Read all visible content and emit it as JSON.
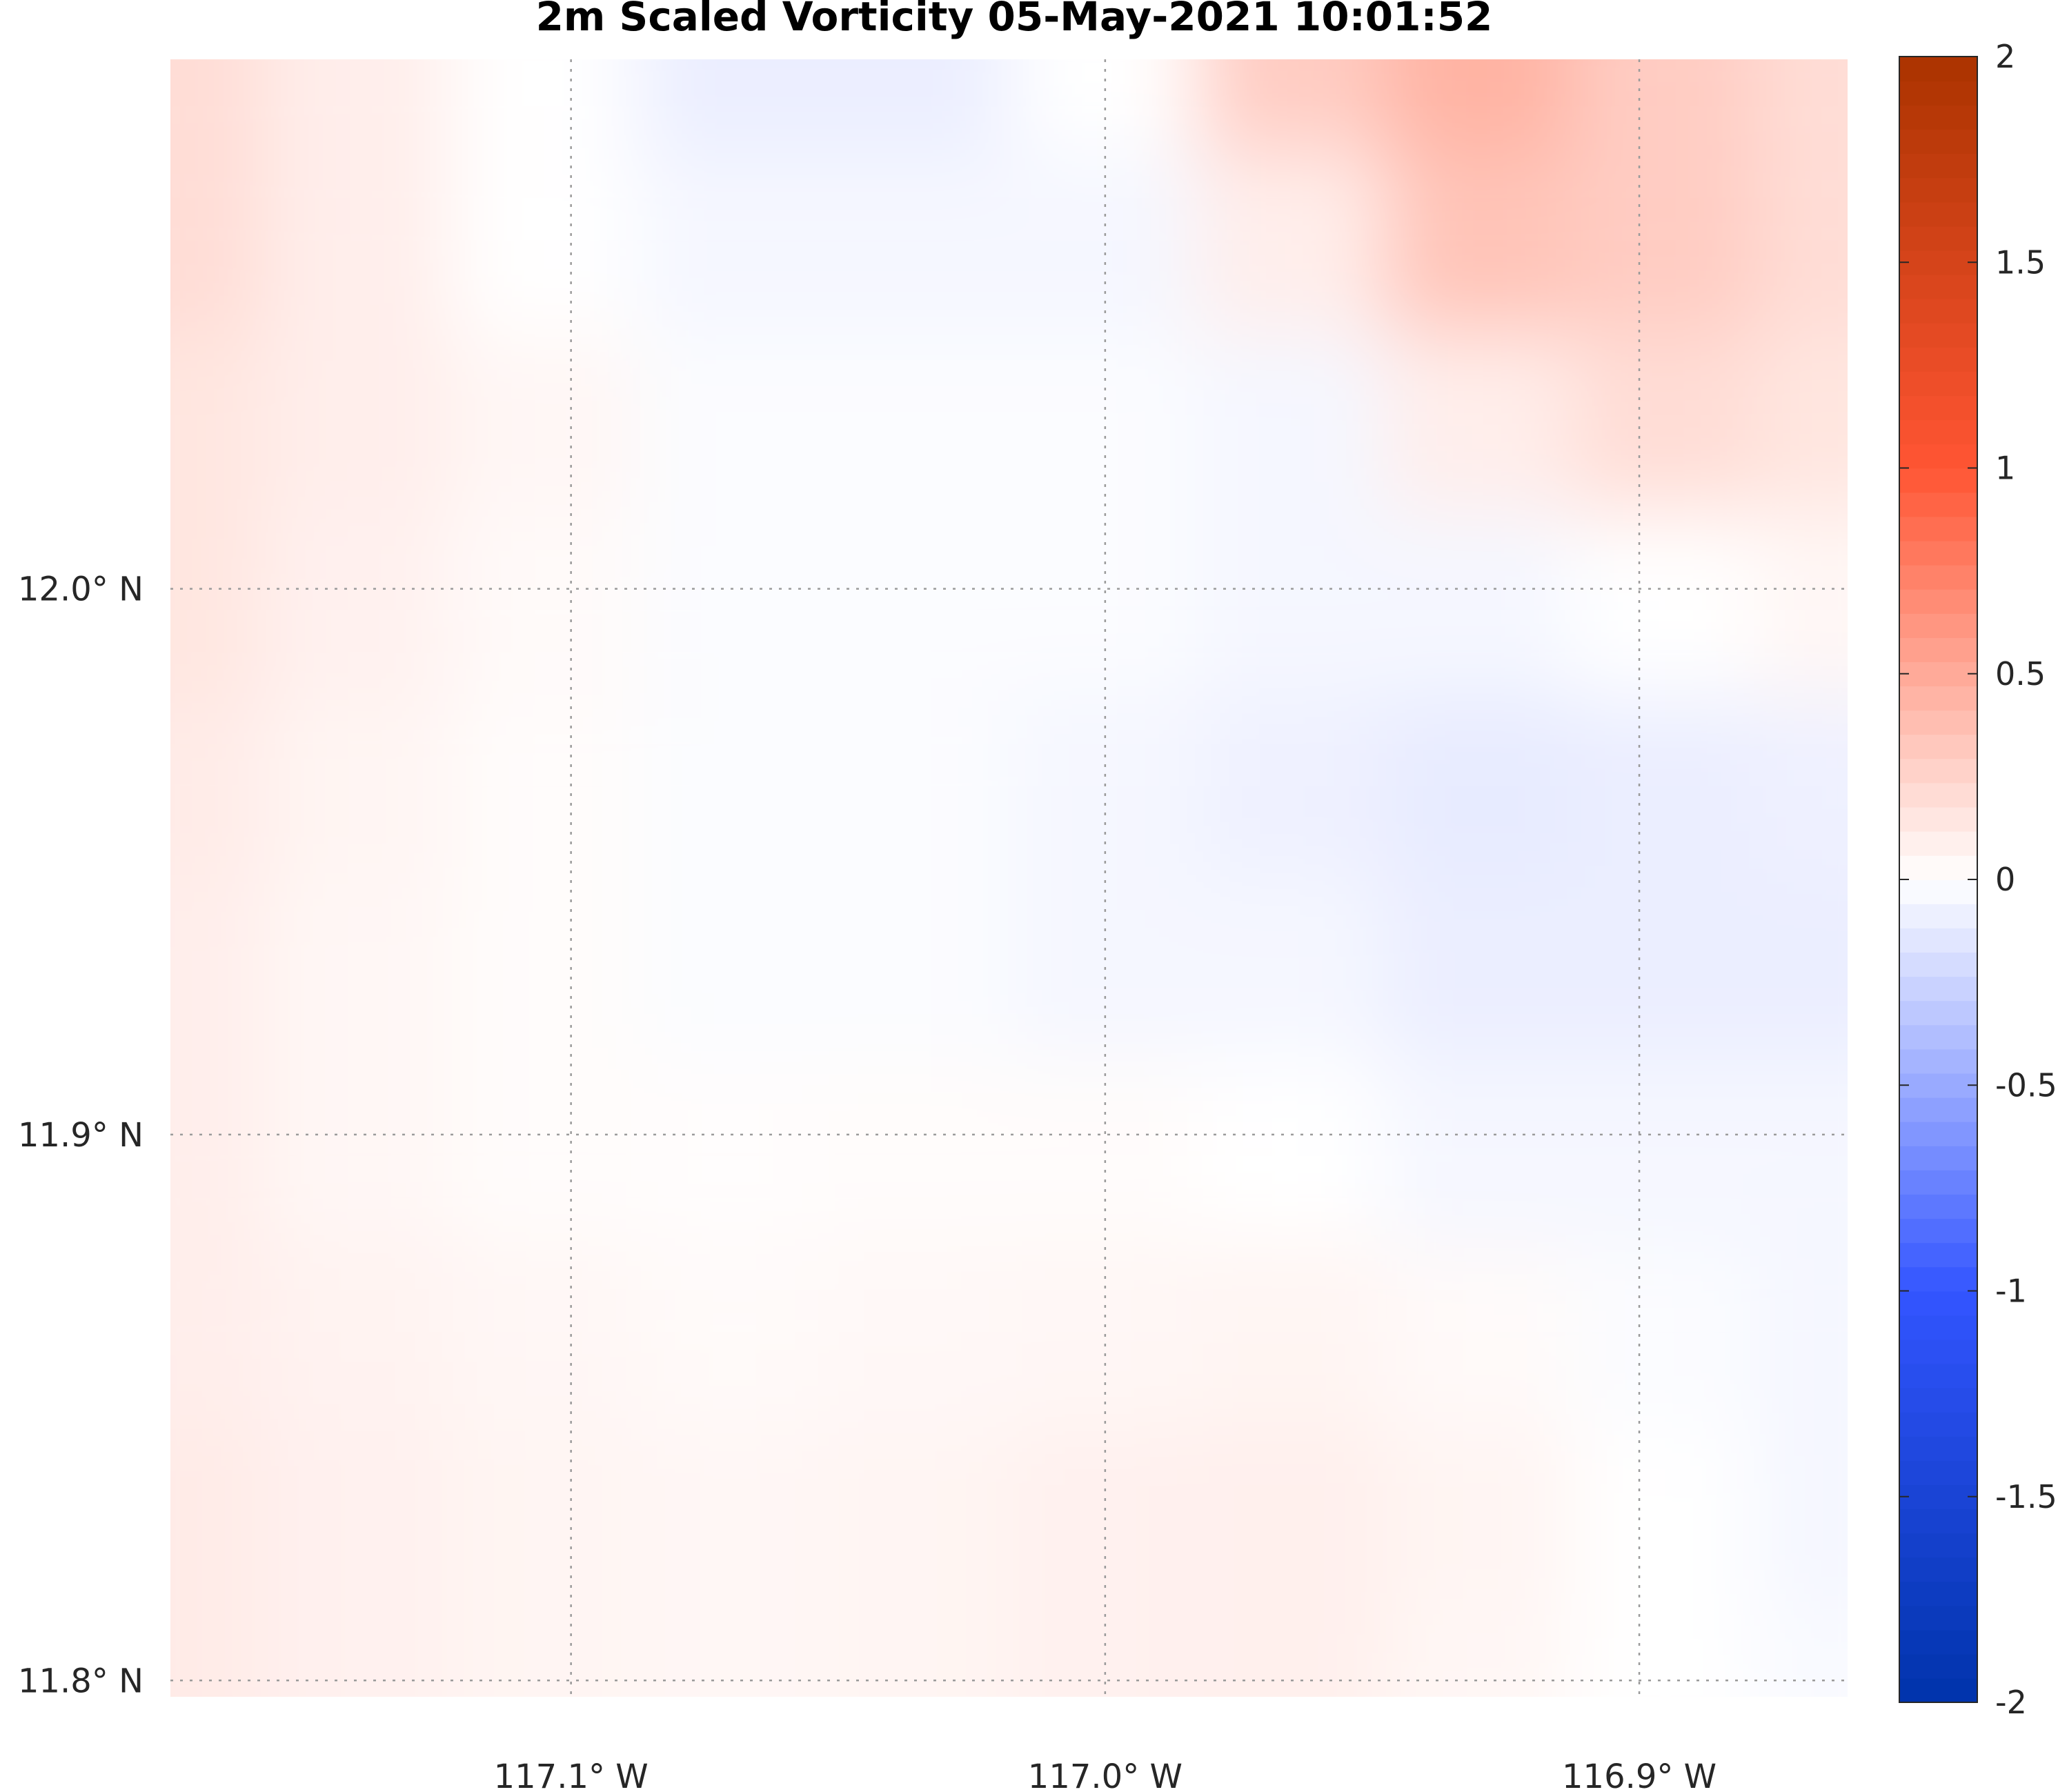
{
  "chart_data": {
    "type": "heatmap",
    "title": "2m Scaled Vorticity  05-May-2021 10:01:52",
    "xlabel": "",
    "ylabel": "",
    "x_ticks": [
      {
        "value": -117.1,
        "label": "117.1° W"
      },
      {
        "value": -117.0,
        "label": "117.0° W"
      },
      {
        "value": -116.9,
        "label": "116.9° W"
      }
    ],
    "y_ticks": [
      {
        "value": 12.0,
        "label": "12.0° N"
      },
      {
        "value": 11.9,
        "label": "11.9° N"
      },
      {
        "value": 11.8,
        "label": "11.8° N"
      }
    ],
    "xlim": [
      -117.175,
      -116.861
    ],
    "ylim": [
      11.797,
      12.097
    ],
    "grid": true,
    "colorbar": {
      "range": [
        -2,
        2
      ],
      "levels": 68,
      "ticks": [
        {
          "value": 2,
          "label": "2"
        },
        {
          "value": 1.5,
          "label": "1.5"
        },
        {
          "value": 1,
          "label": "1"
        },
        {
          "value": 0.5,
          "label": "0.5"
        },
        {
          "value": 0,
          "label": "0"
        },
        {
          "value": -0.5,
          "label": "-0.5"
        },
        {
          "value": -1,
          "label": "-1"
        },
        {
          "value": -1.5,
          "label": "-1.5"
        },
        {
          "value": -2,
          "label": "-2"
        }
      ],
      "colors": {
        "min": "#0033aa",
        "mid_low": "#3355ff",
        "zero": "#ffffff",
        "mid_high": "#ff5533",
        "max": "#aa3300"
      }
    },
    "field": {
      "x": [
        -117.175,
        -117.14,
        -117.105,
        -117.07,
        -117.035,
        -117.0,
        -116.965,
        -116.93,
        -116.895,
        -116.861
      ],
      "y": [
        12.097,
        12.063,
        12.03,
        11.997,
        11.963,
        11.93,
        11.897,
        11.863,
        11.83,
        11.797
      ],
      "values": [
        [
          0.2,
          0.1,
          0.0,
          -0.1,
          -0.1,
          0.0,
          0.3,
          0.45,
          0.3,
          0.2
        ],
        [
          0.2,
          0.1,
          0.0,
          -0.05,
          -0.05,
          -0.05,
          0.1,
          0.35,
          0.3,
          0.2
        ],
        [
          0.15,
          0.1,
          0.05,
          -0.02,
          -0.02,
          -0.02,
          -0.05,
          0.1,
          0.2,
          0.15
        ],
        [
          0.15,
          0.08,
          0.03,
          -0.02,
          -0.02,
          -0.02,
          -0.05,
          -0.05,
          0.0,
          0.05
        ],
        [
          0.12,
          0.06,
          0.02,
          -0.02,
          -0.02,
          -0.05,
          -0.08,
          -0.12,
          -0.1,
          -0.08
        ],
        [
          0.1,
          0.05,
          0.02,
          -0.02,
          -0.02,
          -0.05,
          -0.05,
          -0.1,
          -0.1,
          -0.1
        ],
        [
          0.1,
          0.05,
          0.02,
          0.01,
          0.02,
          0.02,
          0.0,
          -0.05,
          -0.05,
          -0.05
        ],
        [
          0.1,
          0.07,
          0.05,
          0.03,
          0.04,
          0.05,
          0.06,
          0.03,
          -0.02,
          -0.05
        ],
        [
          0.12,
          0.08,
          0.06,
          0.05,
          0.06,
          0.08,
          0.09,
          0.06,
          0.0,
          -0.05
        ],
        [
          0.12,
          0.08,
          0.06,
          0.05,
          0.06,
          0.08,
          0.09,
          0.05,
          0.0,
          -0.03
        ]
      ]
    }
  }
}
